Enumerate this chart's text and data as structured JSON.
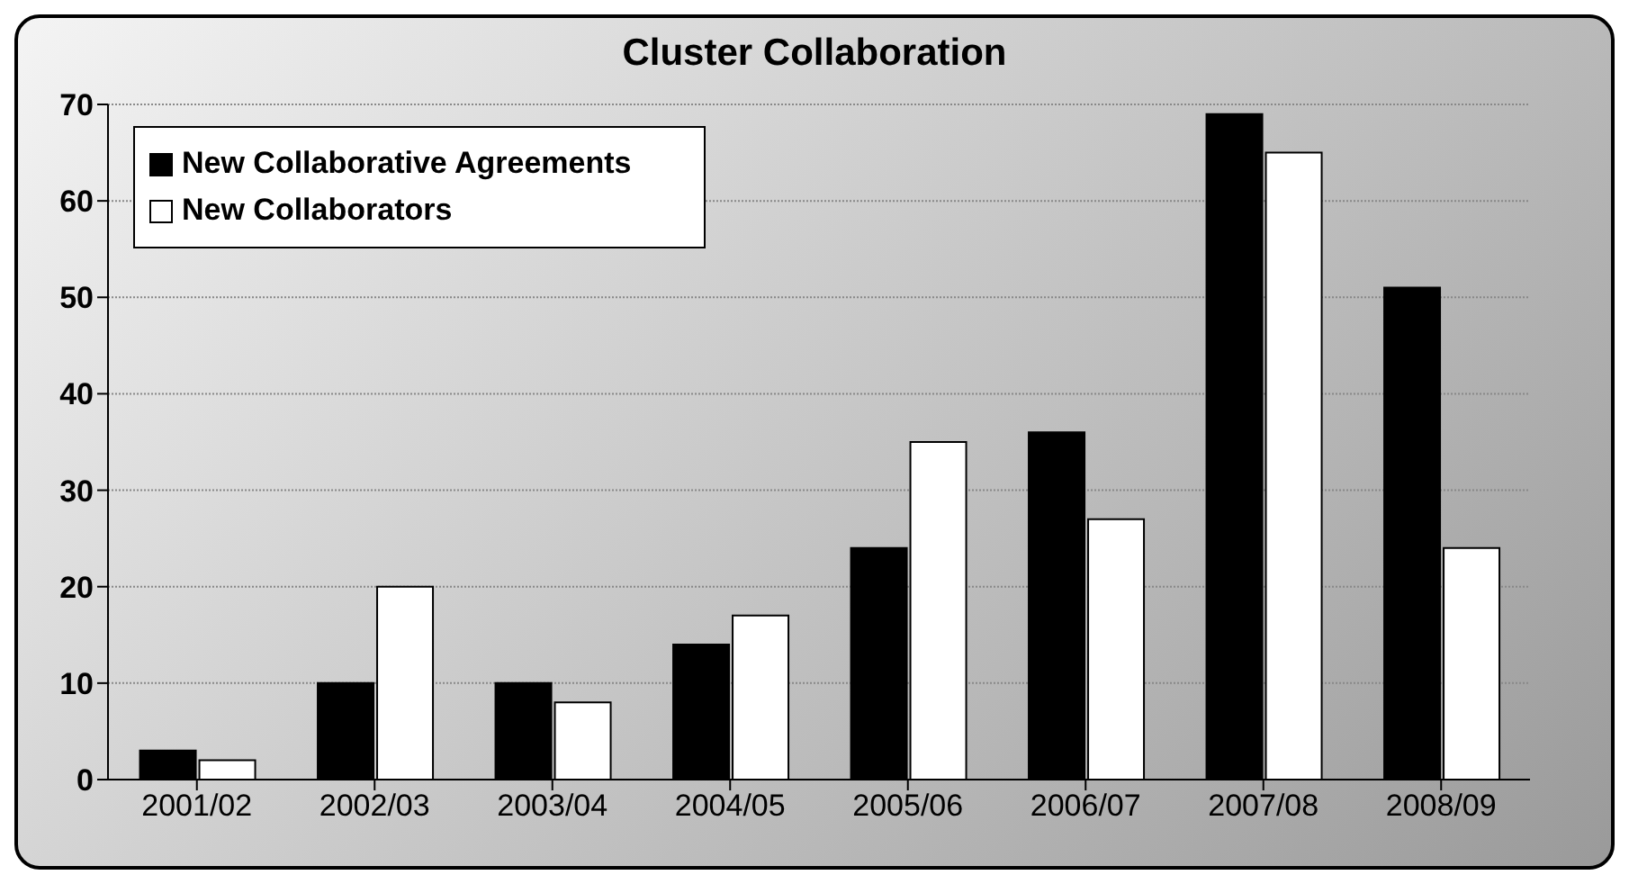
{
  "chart_data": {
    "type": "bar",
    "title": "Cluster Collaboration",
    "categories": [
      "2001/02",
      "2002/03",
      "2003/04",
      "2004/05",
      "2005/06",
      "2006/07",
      "2007/08",
      "2008/09"
    ],
    "series": [
      {
        "name": "New Collaborative Agreements",
        "color": "#000000",
        "values": [
          3,
          10,
          10,
          14,
          24,
          36,
          69,
          51
        ]
      },
      {
        "name": "New Collaborators",
        "color": "#ffffff",
        "values": [
          2,
          20,
          8,
          17,
          35,
          27,
          65,
          24
        ]
      }
    ],
    "ylim": [
      0,
      70
    ],
    "yticks": [
      0,
      10,
      20,
      30,
      40,
      50,
      60,
      70
    ],
    "grid": "y",
    "legend": "top left"
  }
}
